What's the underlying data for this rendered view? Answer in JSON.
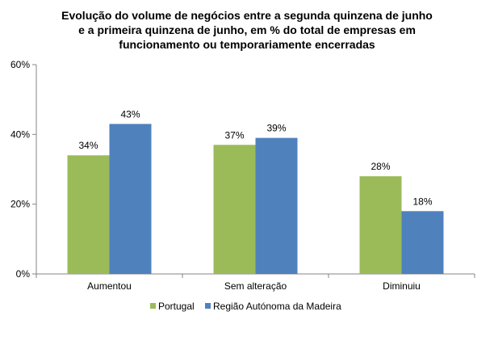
{
  "chart_data": {
    "type": "bar",
    "title_lines": [
      "Evolução do volume de negócios entre a segunda quinzena de junho",
      "e a primeira quinzena de junho, em %  do total de empresas em",
      "funcionamento ou temporariamente encerradas"
    ],
    "categories": [
      "Aumentou",
      "Sem alteração",
      "Diminuiu"
    ],
    "series": [
      {
        "name": "Portugal",
        "color": "#9BBB59",
        "values": [
          34,
          37,
          28
        ],
        "labels": [
          "34%",
          "37%",
          "28%"
        ]
      },
      {
        "name": "Região Autónoma da Madeira",
        "color": "#4F81BD",
        "values": [
          43,
          39,
          18
        ],
        "labels": [
          "43%",
          "39%",
          "18%"
        ]
      }
    ],
    "ylim": [
      0,
      60
    ],
    "yticks": [
      0,
      20,
      40,
      60
    ],
    "ytick_labels": [
      "0%",
      "20%",
      "40%",
      "60%"
    ],
    "xlabel": "",
    "ylabel": "",
    "grid": false,
    "legend_position": "bottom"
  }
}
